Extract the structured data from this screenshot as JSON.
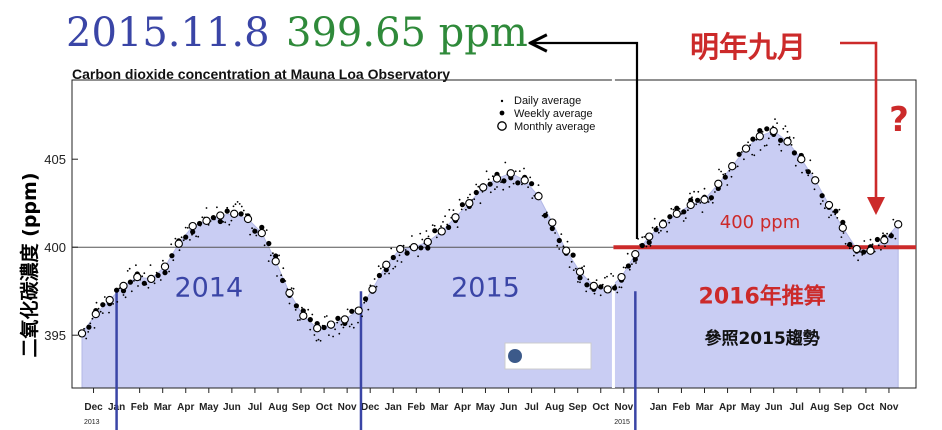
{
  "header": {
    "date": "2015.11.8",
    "value": "399.65 ppm",
    "next_year_label": "明年九月",
    "question_mark": "?",
    "colors": {
      "date": "#3a45a6",
      "value": "#2f8a3a",
      "annotation": "#cc2a2a"
    }
  },
  "chart_data": {
    "type": "scatter",
    "title": "Carbon dioxide concentration at Mauna Loa Observatory",
    "ylabel": "二氧化碳濃度 (ppm)",
    "ylim": [
      392.0,
      409.5
    ],
    "yticks": [
      395,
      400,
      405
    ],
    "xlim": [
      0,
      36
    ],
    "month_ticks": [
      "Dec",
      "Jan",
      "Feb",
      "Mar",
      "Apr",
      "May",
      "Jun",
      "Jul",
      "Aug",
      "Sep",
      "Oct",
      "Nov",
      "Dec",
      "Jan",
      "Feb",
      "Mar",
      "Apr",
      "May",
      "Jun",
      "Jul",
      "Aug",
      "Sep",
      "Oct",
      "Nov",
      "Jan",
      "Feb",
      "Mar",
      "Apr",
      "May",
      "Jun",
      "Jul",
      "Aug",
      "Sep",
      "Oct",
      "Nov"
    ],
    "month_tick_x": [
      0.5,
      1.5,
      2.5,
      3.5,
      4.5,
      5.5,
      6.5,
      7.5,
      8.5,
      9.5,
      10.5,
      11.5,
      12.5,
      13.5,
      14.5,
      15.5,
      16.5,
      17.5,
      18.5,
      19.5,
      20.5,
      21.5,
      22.5,
      23.5,
      25.0,
      26.0,
      27.0,
      28.0,
      29.0,
      30.0,
      31.0,
      32.0,
      33.0,
      34.0,
      35.0
    ],
    "year_labels": [
      {
        "x": 0,
        "label": "2013"
      },
      {
        "x": 23,
        "label": "2015"
      }
    ],
    "legend": {
      "position": "top-right",
      "entries": [
        "Daily average",
        "Weekly average",
        "Monthly average"
      ]
    },
    "reference_line": {
      "y": 400,
      "label": "400 ppm"
    },
    "region_labels": [
      {
        "x": 5.5,
        "y": 397.2,
        "label": "2014"
      },
      {
        "x": 17.5,
        "y": 397.2,
        "label": "2015"
      },
      {
        "x": 29.5,
        "y": 396.8,
        "label": "2016年推算"
      },
      {
        "x": 29.5,
        "y": 394.5,
        "label": "參照2015趨勢"
      }
    ],
    "year_markers_x": [
      1.5,
      12.1,
      24.0
    ],
    "split_x": 23.05,
    "series": [
      {
        "kind": "monthly",
        "x": [
          0,
          0.6,
          1.2,
          1.8,
          2.4,
          3.0,
          3.6,
          4.2,
          4.8,
          5.4,
          6.0,
          6.6,
          7.2,
          7.8,
          8.4,
          9.0,
          9.6,
          10.2,
          10.8,
          11.4,
          12.0,
          12.6,
          13.2,
          13.8,
          14.4,
          15.0,
          15.6,
          16.2,
          16.8,
          17.4,
          18.0,
          18.6,
          19.2,
          19.8,
          20.4,
          21.0,
          21.6,
          22.2,
          22.8,
          23.4,
          24.0,
          24.6,
          25.2,
          25.8,
          26.4,
          27.0,
          27.6,
          28.2,
          28.8,
          29.4,
          30.0,
          30.6,
          31.2,
          31.8,
          32.4,
          33.0,
          33.6,
          34.2,
          34.8,
          35.4
        ],
        "y": [
          395.1,
          396.2,
          397.0,
          397.8,
          398.3,
          398.2,
          398.9,
          400.2,
          401.2,
          401.5,
          401.8,
          401.9,
          401.6,
          400.8,
          399.2,
          397.4,
          396.1,
          395.4,
          395.6,
          395.9,
          396.4,
          397.6,
          399.0,
          399.9,
          400.0,
          400.3,
          400.9,
          401.7,
          402.5,
          403.4,
          403.9,
          404.2,
          403.8,
          402.9,
          401.4,
          399.8,
          398.6,
          397.8,
          397.6,
          398.3,
          399.6,
          400.6,
          401.3,
          401.9,
          402.4,
          402.7,
          403.6,
          404.6,
          405.6,
          406.3,
          406.6,
          406.0,
          405.0,
          403.8,
          402.4,
          401.1,
          399.9,
          399.8,
          400.4,
          401.3
        ]
      }
    ]
  }
}
